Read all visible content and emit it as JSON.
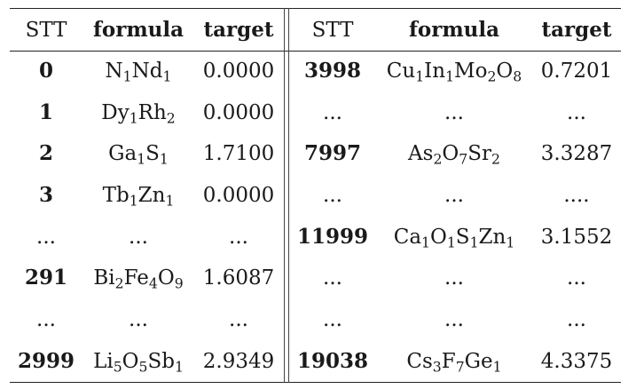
{
  "headers": {
    "left": {
      "stt": "STT",
      "formula": "formula",
      "target": "target"
    },
    "right": {
      "stt": "STT",
      "formula": "formula",
      "target": "target"
    }
  },
  "left_rows": [
    {
      "stt": "0",
      "formula": [
        [
          "N",
          "1"
        ],
        [
          "Nd",
          "1"
        ]
      ],
      "target": "0.0000"
    },
    {
      "stt": "1",
      "formula": [
        [
          "Dy",
          "1"
        ],
        [
          "Rh",
          "2"
        ]
      ],
      "target": "0.0000"
    },
    {
      "stt": "2",
      "formula": [
        [
          "Ga",
          "1"
        ],
        [
          "S",
          "1"
        ]
      ],
      "target": "1.7100"
    },
    {
      "stt": "3",
      "formula": [
        [
          "Tb",
          "1"
        ],
        [
          "Zn",
          "1"
        ]
      ],
      "target": "0.0000"
    },
    {
      "stt": "...",
      "formula": "...",
      "target": "..."
    },
    {
      "stt": "291",
      "formula": [
        [
          "Bi",
          "2"
        ],
        [
          "Fe",
          "4"
        ],
        [
          "O",
          "9"
        ]
      ],
      "target": "1.6087"
    },
    {
      "stt": "...",
      "formula": "...",
      "target": "..."
    },
    {
      "stt": "2999",
      "formula": [
        [
          "Li",
          "5"
        ],
        [
          "O",
          "5"
        ],
        [
          "Sb",
          "1"
        ]
      ],
      "target": "2.9349"
    }
  ],
  "right_rows": [
    {
      "stt": "3998",
      "formula": [
        [
          "Cu",
          "1"
        ],
        [
          "In",
          "1"
        ],
        [
          "Mo",
          "2"
        ],
        [
          "O",
          "8"
        ]
      ],
      "target": "0.7201"
    },
    {
      "stt": "...",
      "formula": "...",
      "target": "..."
    },
    {
      "stt": "7997",
      "formula": [
        [
          "As",
          "2"
        ],
        [
          "O",
          "7"
        ],
        [
          "Sr",
          "2"
        ]
      ],
      "target": "3.3287"
    },
    {
      "stt": "...",
      "formula": "...",
      "target": "...."
    },
    {
      "stt": "11999",
      "formula": [
        [
          "Ca",
          "1"
        ],
        [
          "O",
          "1"
        ],
        [
          "S",
          "1"
        ],
        [
          "Zn",
          "1"
        ]
      ],
      "target": "3.1552"
    },
    {
      "stt": "...",
      "formula": "...",
      "target": "..."
    },
    {
      "stt": "...",
      "formula": "...",
      "target": "..."
    },
    {
      "stt": "19038",
      "formula": [
        [
          "Cs",
          "3"
        ],
        [
          "F",
          "7"
        ],
        [
          "Ge",
          "1"
        ]
      ],
      "target": "4.3375"
    }
  ]
}
